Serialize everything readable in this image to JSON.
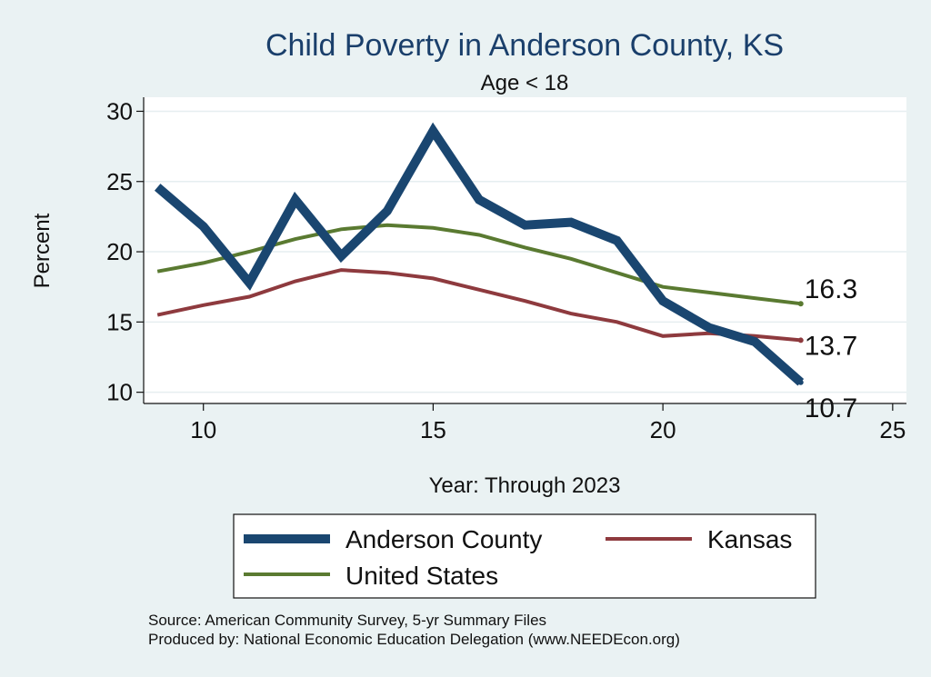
{
  "chart_data": {
    "type": "line",
    "title": "Child Poverty in Anderson County, KS",
    "subtitle": "Age < 18",
    "xlabel": "Year: Through 2023",
    "ylabel": "Percent",
    "xlim": [
      8.7,
      25.3
    ],
    "ylim": [
      9.2,
      31.0
    ],
    "xticks": [
      10,
      15,
      20,
      25
    ],
    "yticks": [
      10,
      15,
      20,
      25,
      30
    ],
    "legend_position": "bottom",
    "series": [
      {
        "name": "Anderson County",
        "color": "#1a4670",
        "x": [
          9,
          10,
          11,
          12,
          13,
          14,
          15,
          16,
          17,
          18,
          19,
          20,
          21,
          22,
          23
        ],
        "values": [
          24.6,
          21.8,
          17.8,
          23.7,
          19.7,
          22.9,
          28.6,
          23.7,
          21.9,
          22.1,
          20.8,
          16.5,
          14.6,
          13.6,
          10.7
        ],
        "end_label": "10.7"
      },
      {
        "name": "Kansas",
        "color": "#8e3a3e",
        "x": [
          9,
          10,
          11,
          12,
          13,
          14,
          15,
          16,
          17,
          18,
          19,
          20,
          21,
          22,
          23
        ],
        "values": [
          15.5,
          16.2,
          16.8,
          17.9,
          18.7,
          18.5,
          18.1,
          17.3,
          16.5,
          15.6,
          15.0,
          14.0,
          14.2,
          14.0,
          13.7
        ],
        "end_label": "13.7"
      },
      {
        "name": "United States",
        "color": "#5a7a31",
        "x": [
          9,
          10,
          11,
          12,
          13,
          14,
          15,
          16,
          17,
          18,
          19,
          20,
          21,
          22,
          23
        ],
        "values": [
          18.6,
          19.2,
          20.0,
          20.9,
          21.6,
          21.9,
          21.7,
          21.2,
          20.3,
          19.5,
          18.5,
          17.5,
          17.1,
          16.7,
          16.3
        ],
        "end_label": "16.3"
      }
    ],
    "notes": [
      "Source: American Community Survey, 5-yr Summary Files",
      "Produced by: National Economic Education Delegation (www.NEEDEcon.org)"
    ]
  }
}
